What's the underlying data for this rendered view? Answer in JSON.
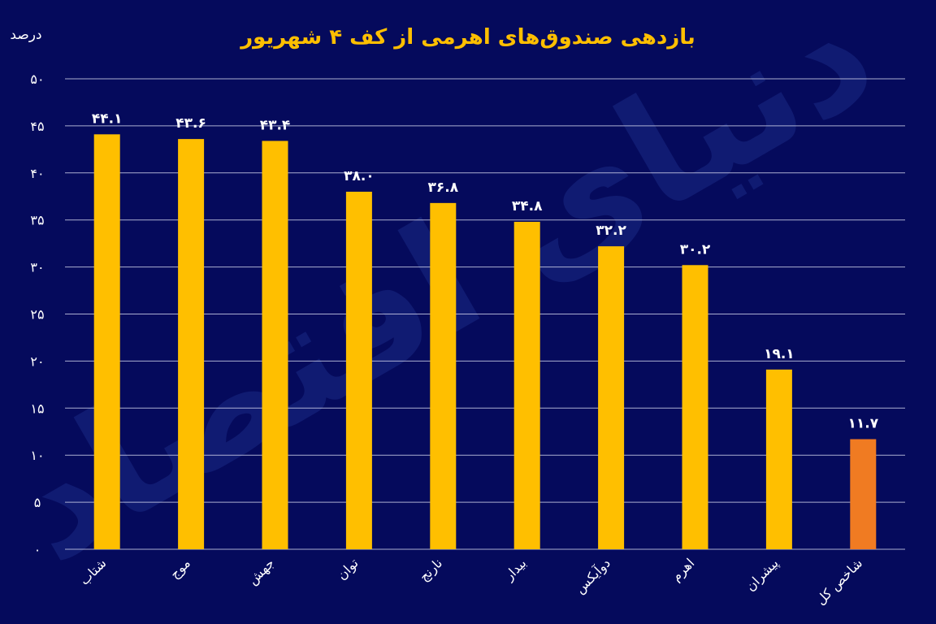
{
  "chart_data": {
    "type": "bar",
    "title": "بازدهی صندوق‌های اهرمی از کف ۴ شهریور",
    "unit_label": "درصد",
    "watermark": "دنیای اقتصاد",
    "categories": [
      "شتاب",
      "موج",
      "جهش",
      "توان",
      "نارنج",
      "بیدار",
      "دوآیکس",
      "اهرم",
      "پیشران",
      "شاخص کل"
    ],
    "values": [
      44.1,
      43.6,
      43.4,
      38.0,
      36.8,
      34.8,
      32.2,
      30.2,
      19.1,
      11.7
    ],
    "value_labels": [
      "۴۴.۱",
      "۴۳.۶",
      "۴۳.۴",
      "۳۸.۰",
      "۳۶.۸",
      "۳۴.۸",
      "۳۲.۲",
      "۳۰.۲",
      "۱۹.۱",
      "۱۱.۷"
    ],
    "y_ticks": [
      0,
      5,
      10,
      15,
      20,
      25,
      30,
      35,
      40,
      45,
      50
    ],
    "y_tick_labels": [
      "۰",
      "۵",
      "۱۰",
      "۱۵",
      "۲۰",
      "۲۵",
      "۳۰",
      "۳۵",
      "۴۰",
      "۴۵",
      "۵۰"
    ],
    "ylim": [
      0,
      50
    ],
    "grid": true,
    "colors": {
      "background": "#050a5c",
      "bar": "#ffbf00",
      "highlight_bar": "#f07b22",
      "title": "#ffbf00",
      "grid": "#c9cbe6",
      "text": "#ffffff",
      "watermark": "#1a2a85"
    },
    "highlight_index": 9
  }
}
